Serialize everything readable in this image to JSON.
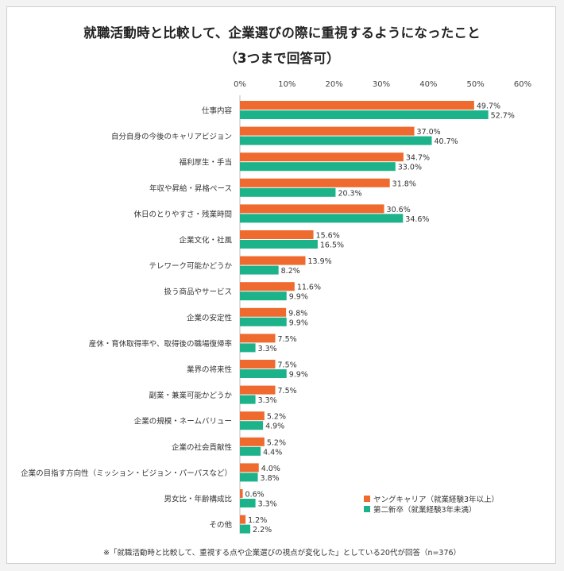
{
  "chart_data": {
    "type": "bar",
    "title": "就職活動時と比較して、企業選びの際に重視するようになったこと",
    "subtitle": "（3つまで回答可）",
    "xlim": [
      0,
      60
    ],
    "ticks": [
      "0%",
      "10%",
      "20%",
      "30%",
      "40%",
      "50%",
      "60%"
    ],
    "tick_values": [
      0,
      10,
      20,
      30,
      40,
      50,
      60
    ],
    "categories": [
      "仕事内容",
      "自分自身の今後のキャリアビジョン",
      "福利厚生・手当",
      "年収や昇給・昇格ペース",
      "休日のとりやすさ・残業時間",
      "企業文化・社風",
      "テレワーク可能かどうか",
      "扱う商品やサービス",
      "企業の安定性",
      "産休・育休取得率や、取得後の職場復帰率",
      "業界の将来性",
      "副業・兼業可能かどうか",
      "企業の規模・ネームバリュー",
      "企業の社会貢献性",
      "企業の目指す方向性（ミッション・ビジョン・パーパスなど）",
      "男女比・年齢構成比",
      "その他"
    ],
    "series": [
      {
        "name": "ヤングキャリア（就業経験3年以上）",
        "color": "#ee6a2f",
        "values": [
          49.7,
          37.0,
          34.7,
          31.8,
          30.6,
          15.6,
          13.9,
          11.6,
          9.8,
          7.5,
          7.5,
          7.5,
          5.2,
          5.2,
          4.0,
          0.6,
          1.2
        ],
        "labels": [
          "49.7%",
          "37.0%",
          "34.7%",
          "31.8%",
          "30.6%",
          "15.6%",
          "13.9%",
          "11.6%",
          "9.8%",
          "7.5%",
          "7.5%",
          "7.5%",
          "5.2%",
          "5.2%",
          "4.0%",
          "0.6%",
          "1.2%"
        ]
      },
      {
        "name": "第二新卒（就業経験3年未満）",
        "color": "#1cb28a",
        "values": [
          52.7,
          40.7,
          33.0,
          20.3,
          34.6,
          16.5,
          8.2,
          9.9,
          9.9,
          3.3,
          9.9,
          3.3,
          4.9,
          4.4,
          3.8,
          3.3,
          2.2
        ],
        "labels": [
          "52.7%",
          "40.7%",
          "33.0%",
          "20.3%",
          "34.6%",
          "16.5%",
          "8.2%",
          "9.9%",
          "9.9%",
          "3.3%",
          "9.9%",
          "3.3%",
          "4.9%",
          "4.4%",
          "3.8%",
          "3.3%",
          "2.2%"
        ]
      }
    ],
    "legend_position": "bottom-right",
    "grid": false
  },
  "footnote": "※「就職活動時と比較して、重視する点や企業選びの視点が変化した」としている20代が回答（n=376）"
}
